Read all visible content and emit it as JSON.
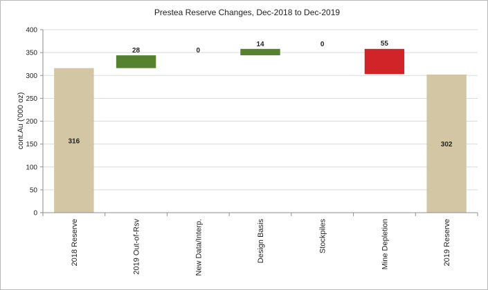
{
  "chart_data": {
    "type": "waterfall",
    "title": "Prestea Reserve Changes, Dec-2018 to Dec-2019",
    "xlabel": "",
    "ylabel": "cont.Au ('000 oz)",
    "ylim": [
      0,
      400
    ],
    "yticks": [
      0,
      50,
      100,
      150,
      200,
      250,
      300,
      350,
      400
    ],
    "grid": true,
    "categories": [
      "2018 Reserve",
      "2019 Out-of-Rsv",
      "New Data/Interp.",
      "Design Basis",
      "Stockpiles",
      "Mine Depletion",
      "2019 Reserve"
    ],
    "series": [
      {
        "category": "2018 Reserve",
        "kind": "total",
        "base": 0,
        "top": 316,
        "label": "316"
      },
      {
        "category": "2019 Out-of-Rsv",
        "kind": "increase",
        "base": 316,
        "top": 344,
        "label": "28"
      },
      {
        "category": "New Data/Interp.",
        "kind": "none",
        "base": 344,
        "top": 344,
        "label": "0"
      },
      {
        "category": "Design Basis",
        "kind": "increase",
        "base": 344,
        "top": 358,
        "label": "14"
      },
      {
        "category": "Stockpiles",
        "kind": "none",
        "base": 358,
        "top": 358,
        "label": "0"
      },
      {
        "category": "Mine Depletion",
        "kind": "decrease",
        "base": 303,
        "top": 358,
        "label": "55"
      },
      {
        "category": "2019 Reserve",
        "kind": "total",
        "base": 0,
        "top": 302,
        "label": "302"
      }
    ],
    "colors": {
      "total": "#d3c6a5",
      "increase": "#56812f",
      "decrease": "#d02428",
      "grid": "#d9d9d9",
      "axis": "#8c8c8c"
    }
  }
}
